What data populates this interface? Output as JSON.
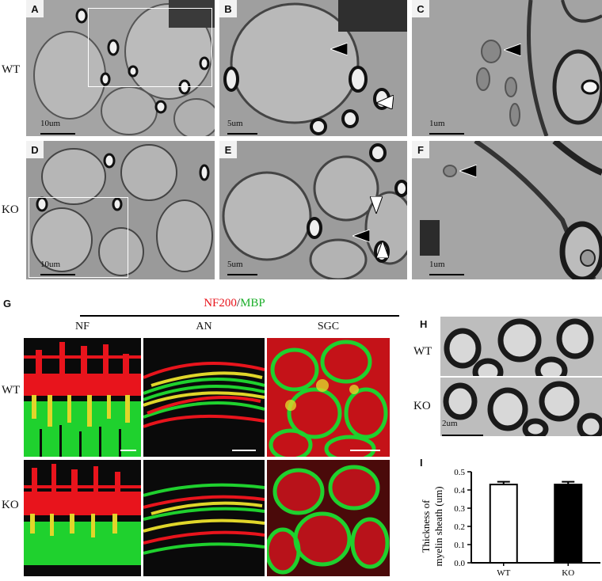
{
  "em_figure": {
    "row_labels": [
      "WT",
      "KO"
    ],
    "panels": [
      {
        "id": "A",
        "scale": "10um"
      },
      {
        "id": "B",
        "scale": "5um"
      },
      {
        "id": "C",
        "scale": "1um"
      },
      {
        "id": "D",
        "scale": "10um"
      },
      {
        "id": "E",
        "scale": "5um"
      },
      {
        "id": "F",
        "scale": "1um"
      }
    ]
  },
  "fluor_figure": {
    "panel_label": "G",
    "header_red": "NF200",
    "header_sep": "/",
    "header_green": "MBP",
    "columns": [
      "NF",
      "AN",
      "SGC"
    ],
    "row_labels": [
      "WT",
      "KO"
    ],
    "colors": {
      "red": "#e8141c",
      "green": "#1fd12e",
      "yellow": "#e0d62a"
    }
  },
  "h_figure": {
    "panel_label": "H",
    "row_labels": [
      "WT",
      "KO"
    ],
    "scale": "2um"
  },
  "chart_data": {
    "type": "bar",
    "panel_label": "I",
    "categories": [
      "WT",
      "KO"
    ],
    "values": [
      0.43,
      0.43
    ],
    "errors": [
      0.015,
      0.015
    ],
    "ylabel_line1": "Thickness of",
    "ylabel_line2": "myelin sheath (um)",
    "ylim": [
      0.0,
      0.5
    ],
    "yticks": [
      "0.0",
      "0.1",
      "0.2",
      "0.3",
      "0.4",
      "0.5"
    ],
    "bar_fill": [
      "#ffffff",
      "#000000"
    ]
  }
}
